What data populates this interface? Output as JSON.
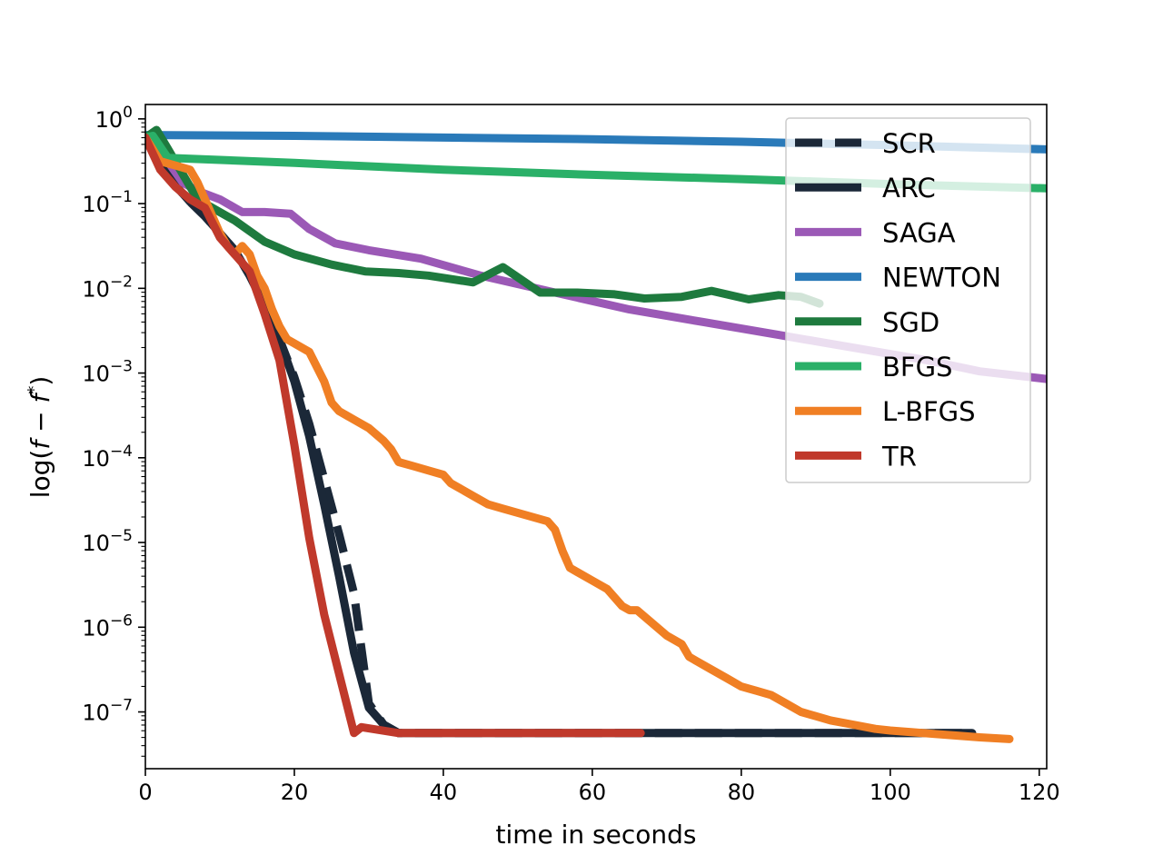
{
  "chart_data": {
    "type": "line",
    "title": "",
    "xlabel": "time in seconds",
    "ylabel": "log(f − f*)",
    "ylabel_base": "log(",
    "ylabel_f": "f",
    "ylabel_minus": " − ",
    "ylabel_fstar": "f",
    "ylabel_star": "*",
    "ylabel_close": ")",
    "xlim": [
      0,
      121
    ],
    "ylim_log10": [
      -7.67,
      0.17
    ],
    "yscale": "log",
    "xticks": [
      0,
      20,
      40,
      60,
      80,
      100,
      120
    ],
    "xtick_labels": [
      "0",
      "20",
      "40",
      "60",
      "80",
      "100",
      "120"
    ],
    "yticks_exp": [
      0,
      -1,
      -2,
      -3,
      -4,
      -5,
      -6,
      -7
    ],
    "ytick_base": "10",
    "ytick_exps": [
      "0",
      "−1",
      "−2",
      "−3",
      "−4",
      "−5",
      "−6",
      "−7"
    ],
    "legend_position": "upper right",
    "series": [
      {
        "name": "SCR",
        "color": "#1b2838",
        "dashed": true,
        "x": [
          0,
          2,
          4,
          6,
          8,
          10,
          12,
          14,
          16,
          18,
          20,
          22,
          24,
          26,
          28,
          30,
          32,
          34,
          40,
          60,
          80,
          100,
          110
        ],
        "y": [
          -0.22,
          -0.52,
          -0.78,
          -0.98,
          -1.15,
          -1.35,
          -1.55,
          -1.85,
          -2.2,
          -2.6,
          -3.05,
          -3.6,
          -4.25,
          -4.9,
          -5.6,
          -6.9,
          -7.15,
          -7.25,
          -7.25,
          -7.25,
          -7.25,
          -7.25,
          -7.25
        ]
      },
      {
        "name": "ARC",
        "color": "#1b2838",
        "dashed": false,
        "x": [
          0,
          2,
          4,
          6,
          8,
          10,
          12,
          14,
          16,
          18,
          20,
          22,
          24,
          26,
          28,
          30,
          32,
          34,
          36,
          40,
          60,
          80,
          100,
          111
        ],
        "y": [
          -0.22,
          -0.5,
          -0.78,
          -0.98,
          -1.15,
          -1.35,
          -1.55,
          -1.85,
          -2.2,
          -2.6,
          -3.1,
          -3.75,
          -4.55,
          -5.4,
          -6.3,
          -6.95,
          -7.15,
          -7.25,
          -7.25,
          -7.25,
          -7.25,
          -7.25,
          -7.25,
          -7.25
        ]
      },
      {
        "name": "SAGA",
        "color": "#9b59b6",
        "dashed": false,
        "x": [
          0,
          1.5,
          3,
          5,
          7,
          10,
          13,
          16,
          19.5,
          22,
          25.5,
          30,
          37,
          45,
          55,
          65,
          75,
          85,
          95,
          105,
          112,
          121
        ],
        "y": [
          -0.22,
          -0.2,
          -0.5,
          -0.75,
          -0.85,
          -0.95,
          -1.1,
          -1.1,
          -1.12,
          -1.3,
          -1.47,
          -1.55,
          -1.65,
          -1.85,
          -2.05,
          -2.25,
          -2.4,
          -2.55,
          -2.7,
          -2.85,
          -2.98,
          -3.07
        ]
      },
      {
        "name": "NEWTON",
        "color": "#2a7ab9",
        "dashed": false,
        "x": [
          0,
          20,
          40,
          60,
          80,
          100,
          121
        ],
        "y": [
          -0.19,
          -0.2,
          -0.22,
          -0.24,
          -0.27,
          -0.31,
          -0.36
        ]
      },
      {
        "name": "SGD",
        "color": "#1e7a3e",
        "dashed": false,
        "x": [
          0,
          1.5,
          3,
          5,
          7,
          9,
          12,
          16,
          20,
          25,
          29.5,
          34,
          38,
          44,
          48,
          53,
          58,
          63,
          67,
          72,
          76,
          81,
          85,
          88,
          90.5
        ],
        "y": [
          -0.22,
          -0.13,
          -0.35,
          -0.65,
          -0.95,
          -1.05,
          -1.2,
          -1.45,
          -1.6,
          -1.72,
          -1.8,
          -1.82,
          -1.85,
          -1.93,
          -1.75,
          -2.05,
          -2.05,
          -2.07,
          -2.12,
          -2.1,
          -2.03,
          -2.13,
          -2.08,
          -2.1,
          -2.18
        ]
      },
      {
        "name": "BFGS",
        "color": "#2ab068",
        "dashed": false,
        "x": [
          0,
          1,
          3,
          20,
          40,
          60,
          80,
          100,
          121
        ],
        "y": [
          -0.22,
          -0.2,
          -0.46,
          -0.52,
          -0.6,
          -0.66,
          -0.71,
          -0.77,
          -0.82
        ]
      },
      {
        "name": "L-BFGS",
        "color": "#f07f24",
        "dashed": false,
        "x": [
          0,
          2,
          4,
          6,
          7,
          8,
          9,
          10,
          11,
          12,
          13,
          14,
          15,
          16,
          17,
          18,
          19,
          20,
          22,
          24,
          25,
          26,
          28,
          30,
          32,
          33,
          34,
          36,
          38,
          40,
          41,
          42,
          44,
          46,
          48,
          50,
          52,
          54,
          55,
          56,
          57,
          58,
          60,
          62,
          64,
          65,
          66,
          68,
          70,
          72,
          73,
          74,
          76,
          78,
          80,
          82,
          84,
          86,
          88,
          90,
          92,
          95,
          98,
          100,
          103,
          106,
          109,
          112,
          116
        ],
        "y": [
          -0.22,
          -0.5,
          -0.55,
          -0.6,
          -0.75,
          -0.95,
          -1.15,
          -1.35,
          -1.5,
          -1.6,
          -1.5,
          -1.6,
          -1.85,
          -2.0,
          -2.25,
          -2.45,
          -2.6,
          -2.65,
          -2.75,
          -3.1,
          -3.35,
          -3.45,
          -3.55,
          -3.65,
          -3.8,
          -3.9,
          -4.05,
          -4.1,
          -4.15,
          -4.2,
          -4.3,
          -4.35,
          -4.45,
          -4.55,
          -4.6,
          -4.65,
          -4.7,
          -4.75,
          -4.85,
          -5.1,
          -5.3,
          -5.35,
          -5.45,
          -5.55,
          -5.75,
          -5.8,
          -5.8,
          -5.95,
          -6.1,
          -6.2,
          -6.35,
          -6.4,
          -6.5,
          -6.6,
          -6.7,
          -6.75,
          -6.8,
          -6.9,
          -7.0,
          -7.05,
          -7.1,
          -7.15,
          -7.2,
          -7.22,
          -7.24,
          -7.26,
          -7.28,
          -7.3,
          -7.32
        ]
      },
      {
        "name": "TR",
        "color": "#c0392b",
        "dashed": false,
        "x": [
          0,
          2,
          4,
          6,
          8,
          10,
          12,
          14,
          16,
          18,
          20,
          22,
          24,
          26,
          28,
          29,
          34,
          40,
          50,
          60,
          66.5
        ],
        "y": [
          -0.22,
          -0.6,
          -0.8,
          -0.95,
          -1.05,
          -1.4,
          -1.6,
          -1.8,
          -2.3,
          -2.85,
          -3.85,
          -4.95,
          -5.85,
          -6.55,
          -7.25,
          -7.18,
          -7.25,
          -7.25,
          -7.25,
          -7.25,
          -7.25
        ]
      }
    ]
  }
}
